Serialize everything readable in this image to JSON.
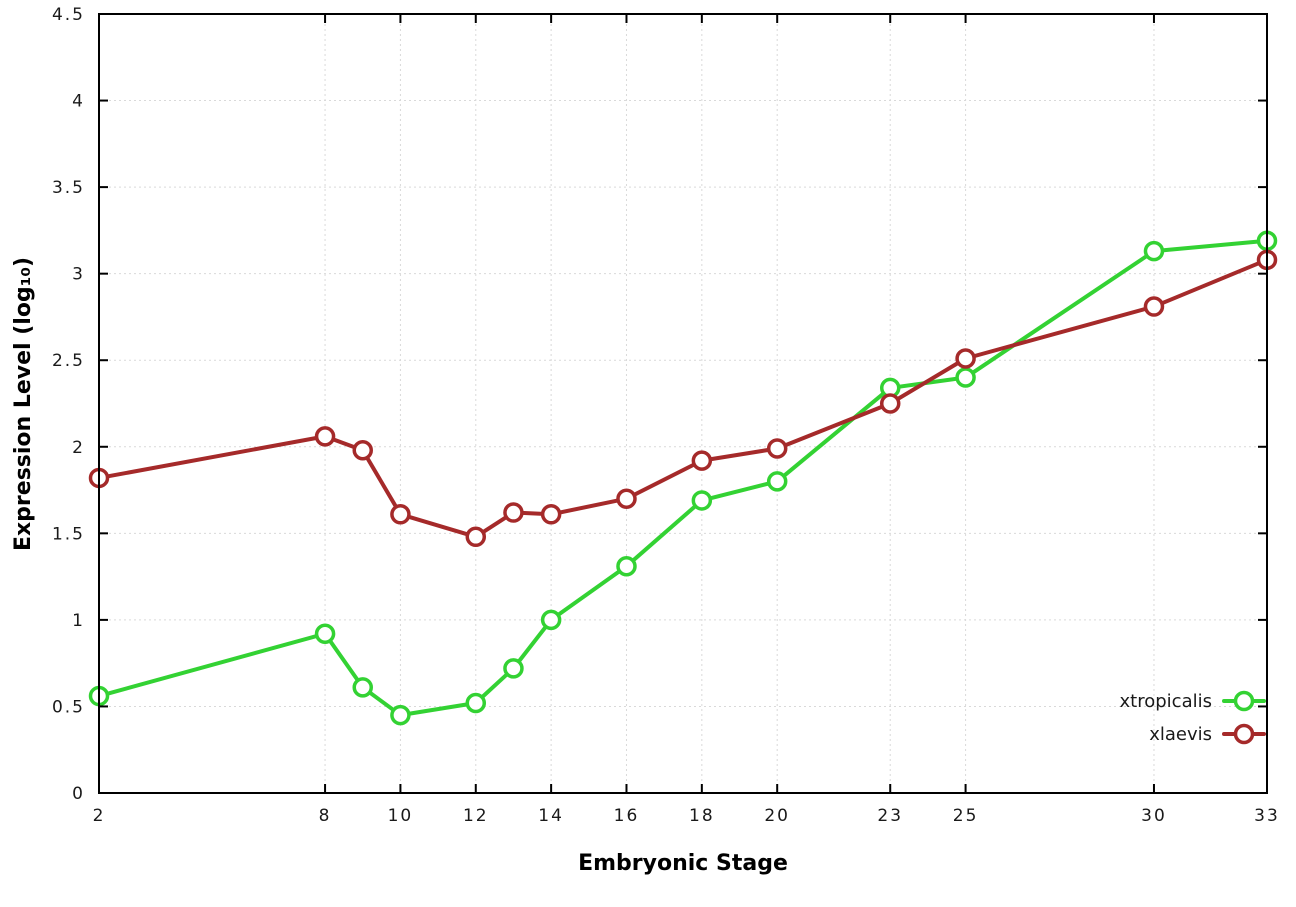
{
  "chart_data": {
    "type": "line",
    "title": "",
    "xlabel": "Embryonic Stage",
    "ylabel": "Expression Level (log₁₀)",
    "x": [
      2,
      8,
      9,
      10,
      12,
      13,
      14,
      16,
      18,
      20,
      23,
      25,
      30,
      33
    ],
    "series": [
      {
        "name": "xtropicalis",
        "color": "#33d233",
        "values": [
          0.56,
          0.92,
          0.61,
          0.45,
          0.52,
          0.72,
          1.0,
          1.31,
          1.69,
          1.8,
          2.34,
          2.4,
          3.13,
          3.19
        ]
      },
      {
        "name": "xlaevis",
        "color": "#a52a2a",
        "values": [
          1.82,
          2.06,
          1.98,
          1.61,
          1.48,
          1.62,
          1.61,
          1.7,
          1.92,
          1.99,
          2.25,
          2.51,
          2.81,
          3.08
        ]
      }
    ],
    "x_ticks": [
      2,
      8,
      10,
      12,
      14,
      16,
      18,
      20,
      23,
      25,
      30,
      33
    ],
    "y_ticks": [
      0,
      0.5,
      1,
      1.5,
      2,
      2.5,
      3,
      3.5,
      4,
      4.5
    ],
    "xlim": [
      2,
      33
    ],
    "ylim": [
      0,
      4.5
    ],
    "grid": true,
    "legend_position": "bottom-right"
  }
}
